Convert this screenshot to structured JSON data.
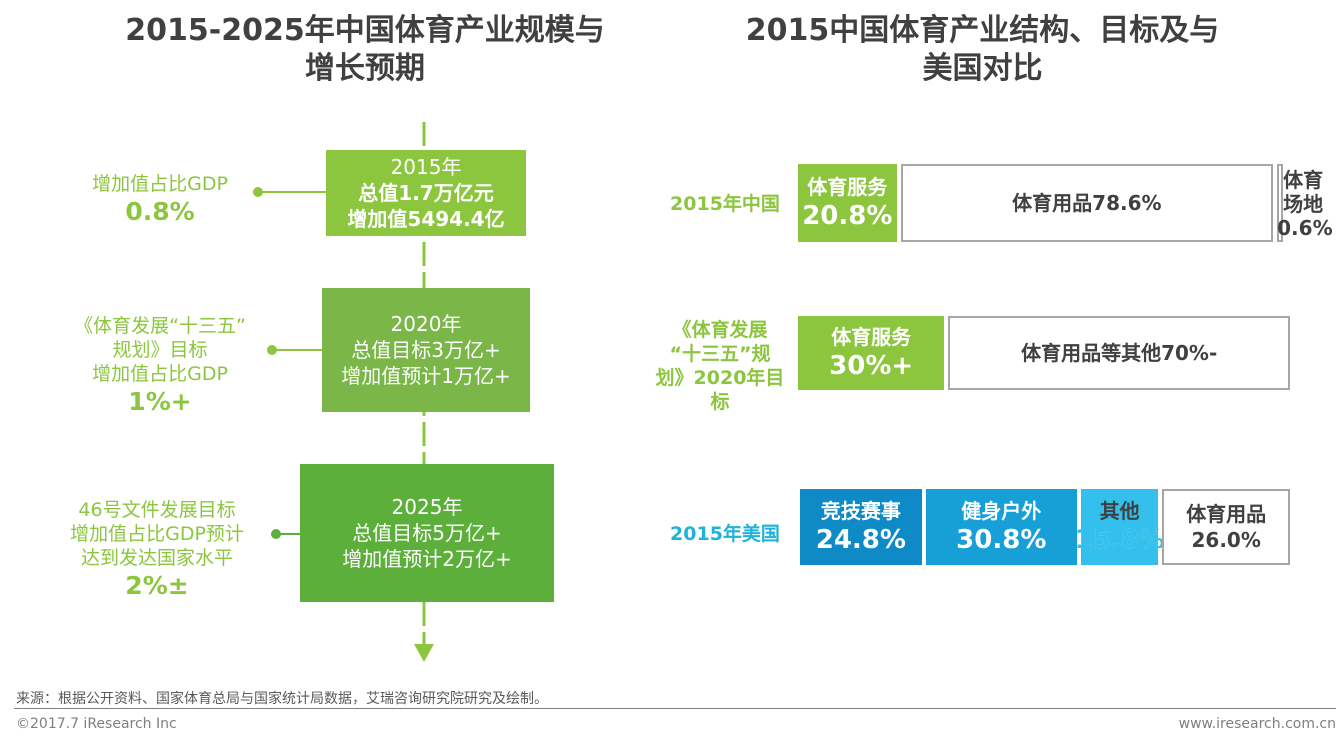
{
  "left_title": [
    "2015-2025年中国体育产业规模与",
    "增长预期"
  ],
  "right_title": [
    "2015中国体育产业结构、目标及与",
    "美国对比"
  ],
  "timeline": [
    {
      "year": "2015年",
      "l1": "总值1.7万亿元",
      "l2": "增加值5494.4亿",
      "side": [
        "增加值占比GDP"
      ],
      "side_value": "0.8%"
    },
    {
      "year": "2020年",
      "l1": "总值目标3万亿+",
      "l2": "增加值预计1万亿+",
      "side": [
        "《体育发展“十三五”",
        "规划》目标",
        "增加值占比GDP"
      ],
      "side_value": "1%+"
    },
    {
      "year": "2025年",
      "l1": "总值目标5万亿+",
      "l2": "增加值预计2万亿+",
      "side": [
        "46号文件发展目标",
        "增加值占比GDP预计",
        "达到发达国家水平"
      ],
      "side_value": "2%±"
    }
  ],
  "colors": {
    "green_light": "#8cc63f",
    "green_mid": "#7ab648",
    "green_dark": "#5daf3c",
    "blue_dark": "#0e8ac7",
    "blue_mid": "#17a0d8",
    "blue_light": "#33c0ec",
    "cyan_label": "#20b2d8",
    "gray_text": "#404040"
  },
  "chart_data": {
    "type": "bar",
    "orientation": "horizontal-stacked-100",
    "rows": [
      {
        "label": [
          "2015年中国"
        ],
        "label_color": "#8cc63f",
        "segments": [
          {
            "name": "体育服务",
            "value": 20.8,
            "value_text": "20.8%"
          },
          {
            "name": "体育用品",
            "value": 78.6,
            "value_text": "78.6%"
          },
          {
            "name": "体育场地",
            "value": 0.6,
            "value_text": "0.6%"
          }
        ]
      },
      {
        "label": [
          "《体育发展",
          "“十三五”规",
          "划》2020年目",
          "标"
        ],
        "label_color": "#8cc63f",
        "segments": [
          {
            "name": "体育服务",
            "value": 30,
            "value_text": "30%+"
          },
          {
            "name": "体育用品等其他",
            "value": 70,
            "value_text": "70%-"
          }
        ]
      },
      {
        "label": [
          "2015年美国"
        ],
        "label_color": "#20b2d8",
        "segments": [
          {
            "name": "竞技赛事",
            "value": 24.8,
            "value_text": "24.8%"
          },
          {
            "name": "健身户外",
            "value": 30.8,
            "value_text": "30.8%"
          },
          {
            "name": "其他",
            "value": 15.8,
            "value_text": "15.8%"
          },
          {
            "name": "体育用品",
            "value": 26.0,
            "value_text": "26.0%"
          }
        ]
      }
    ]
  },
  "footer": {
    "source": "来源：根据公开资料、国家体育总局与国家统计局数据，艾瑞咨询研究院研究及绘制。",
    "copyright": "©2017.7 iResearch Inc",
    "url": "www.iresearch.com.cn"
  }
}
